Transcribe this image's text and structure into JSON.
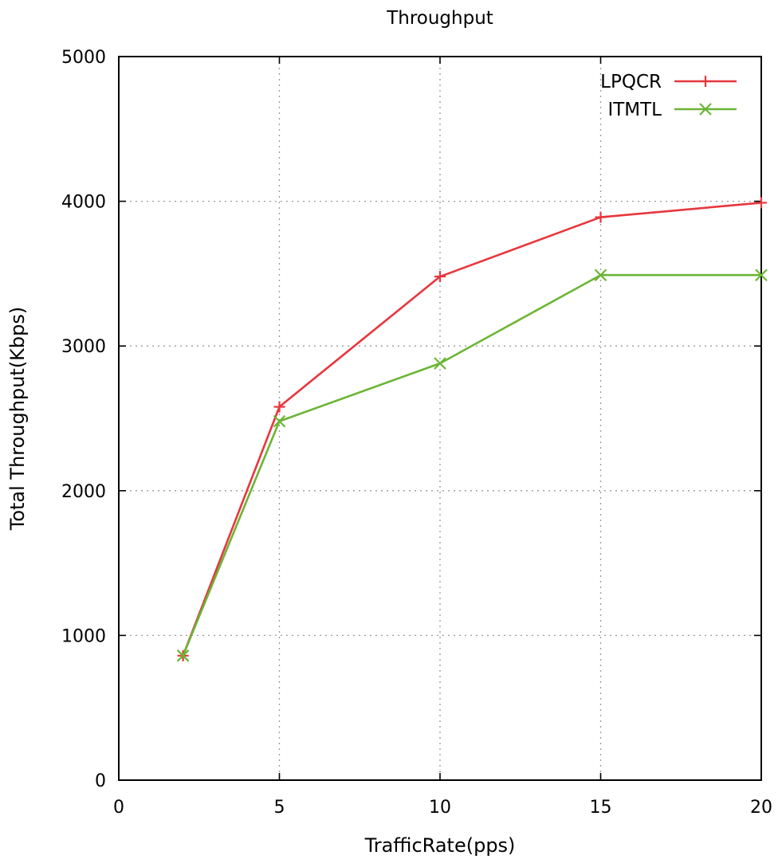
{
  "chart_data": {
    "type": "line",
    "title": "Throughput",
    "xlabel": "TrafficRate(pps)",
    "ylabel": "Total Throughput(Kbps)",
    "xlim": [
      0,
      20
    ],
    "ylim": [
      0,
      5000
    ],
    "xticks": [
      0,
      5,
      10,
      15,
      20
    ],
    "yticks": [
      0,
      1000,
      2000,
      3000,
      4000,
      5000
    ],
    "grid": true,
    "legend_position": "top-right",
    "series": [
      {
        "name": "LPQCR",
        "color": "#e8363d",
        "marker": "plus",
        "x": [
          2,
          5,
          10,
          15,
          20
        ],
        "y": [
          860,
          2580,
          3480,
          3890,
          3990
        ]
      },
      {
        "name": "ITMTL",
        "color": "#6ab535",
        "marker": "cross",
        "x": [
          2,
          5,
          10,
          15,
          20
        ],
        "y": [
          860,
          2480,
          2880,
          3490,
          3490
        ]
      }
    ]
  }
}
